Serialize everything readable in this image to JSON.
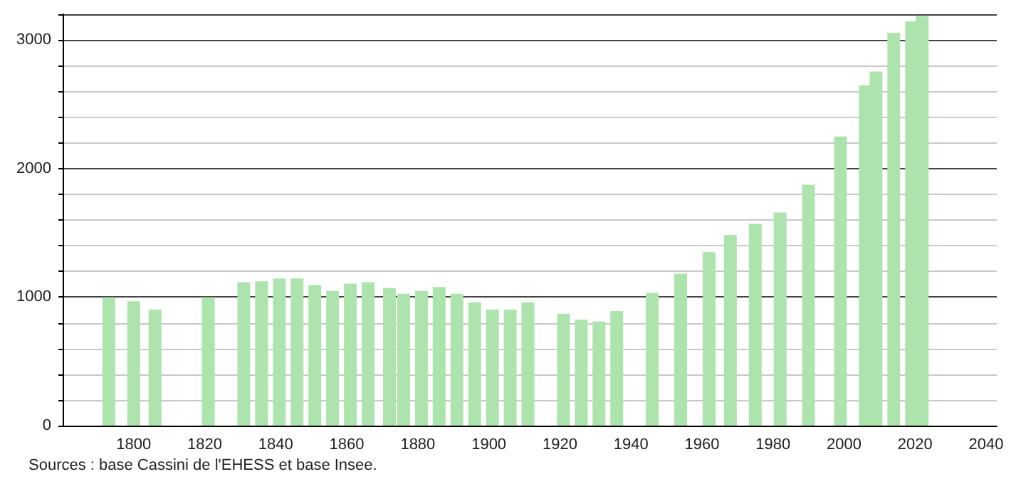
{
  "chart_data": {
    "type": "bar",
    "annotations": [
      "Sources : base Cassini de l'EHESS et base Insee."
    ],
    "x": [
      1793,
      1800,
      1806,
      1821,
      1831,
      1836,
      1841,
      1846,
      1851,
      1856,
      1861,
      1866,
      1872,
      1876,
      1881,
      1886,
      1891,
      1896,
      1901,
      1906,
      1911,
      1921,
      1926,
      1931,
      1936,
      1946,
      1954,
      1962,
      1968,
      1975,
      1982,
      1990,
      1999,
      2006,
      2009,
      2014,
      2019,
      2022
    ],
    "values": [
      1000,
      967,
      903,
      1000,
      1115,
      1123,
      1145,
      1145,
      1093,
      1048,
      1104,
      1115,
      1071,
      1026,
      1048,
      1078,
      1026,
      959,
      903,
      903,
      959,
      870,
      825,
      810,
      892,
      1033,
      1182,
      1349,
      1483,
      1569,
      1658,
      1874,
      2249,
      2647,
      2755,
      3056,
      3145,
      3186
    ],
    "color": "#ade3ad",
    "xlim": [
      1780,
      2043
    ],
    "xticks": [
      1800,
      1820,
      1840,
      1860,
      1880,
      1900,
      1920,
      1940,
      1960,
      1980,
      2000,
      2020,
      2040
    ],
    "ylim": [
      0,
      3200
    ],
    "yticks": [
      0,
      {
        "value": 200,
        "label": null
      },
      {
        "value": 400,
        "label": null
      },
      {
        "value": 600,
        "label": null
      },
      {
        "value": 800,
        "label": null
      },
      1000,
      {
        "value": 1200,
        "label": null
      },
      {
        "value": 1400,
        "label": null
      },
      {
        "value": 1600,
        "label": null
      },
      {
        "value": 1800,
        "label": null
      },
      2000,
      {
        "value": 2200,
        "label": null
      },
      {
        "value": 2400,
        "label": null
      },
      {
        "value": 2600,
        "label": null
      },
      {
        "value": 2800,
        "label": null
      },
      3000,
      {
        "value": 3200,
        "label": null
      }
    ],
    "grid": "y"
  }
}
